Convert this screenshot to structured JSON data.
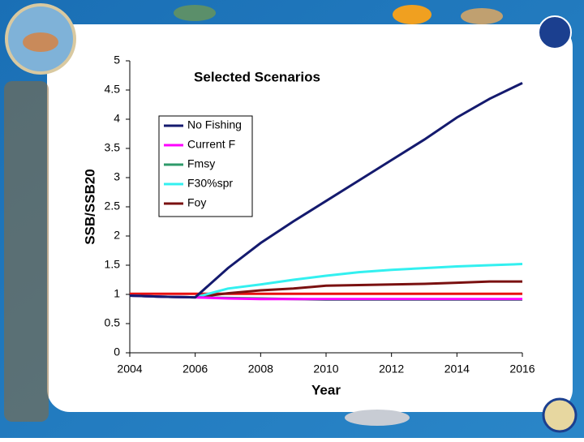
{
  "chart_data": {
    "type": "line",
    "title": "Selected Scenarios",
    "x_label": "Year",
    "y_label": "SSB/SSB20",
    "x": [
      2004,
      2005,
      2006,
      2007,
      2008,
      2009,
      2010,
      2011,
      2012,
      2013,
      2014,
      2015,
      2016
    ],
    "series": [
      {
        "name": "No Fishing",
        "color": "#141a6e",
        "values": [
          0.98,
          0.96,
          0.95,
          1.45,
          1.88,
          2.25,
          2.6,
          2.95,
          3.3,
          3.65,
          4.03,
          4.35,
          4.62
        ]
      },
      {
        "name": "Current F",
        "color": "#ff00ff",
        "values": [
          0.98,
          0.96,
          0.95,
          0.93,
          0.92,
          0.92,
          0.92,
          0.92,
          0.92,
          0.92,
          0.92,
          0.92,
          0.92
        ]
      },
      {
        "name": "Fmsy",
        "color": "#2e9a6a",
        "values": [
          0.98,
          0.96,
          0.95,
          0.94,
          0.93,
          0.92,
          0.91,
          0.91,
          0.91,
          0.91,
          0.91,
          0.91,
          0.91
        ]
      },
      {
        "name": "F30%spr",
        "color": "#33f0f0",
        "values": [
          0.98,
          0.96,
          0.95,
          1.1,
          1.17,
          1.25,
          1.32,
          1.38,
          1.42,
          1.45,
          1.48,
          1.5,
          1.52
        ]
      },
      {
        "name": "Foy",
        "color": "#7a1010",
        "values": [
          0.98,
          0.96,
          0.95,
          1.02,
          1.07,
          1.1,
          1.15,
          1.16,
          1.17,
          1.18,
          1.2,
          1.22,
          1.22
        ]
      }
    ],
    "reference_line": {
      "value": 1.01,
      "color": "#e81010"
    },
    "xlim": [
      2004,
      2016
    ],
    "xticks": [
      2004,
      2006,
      2008,
      2010,
      2012,
      2014,
      2016
    ],
    "ylim": [
      0,
      5
    ],
    "yticks": [
      0,
      0.5,
      1,
      1.5,
      2,
      2.5,
      3,
      3.5,
      4,
      4.5,
      5
    ],
    "legend": "upper left"
  }
}
